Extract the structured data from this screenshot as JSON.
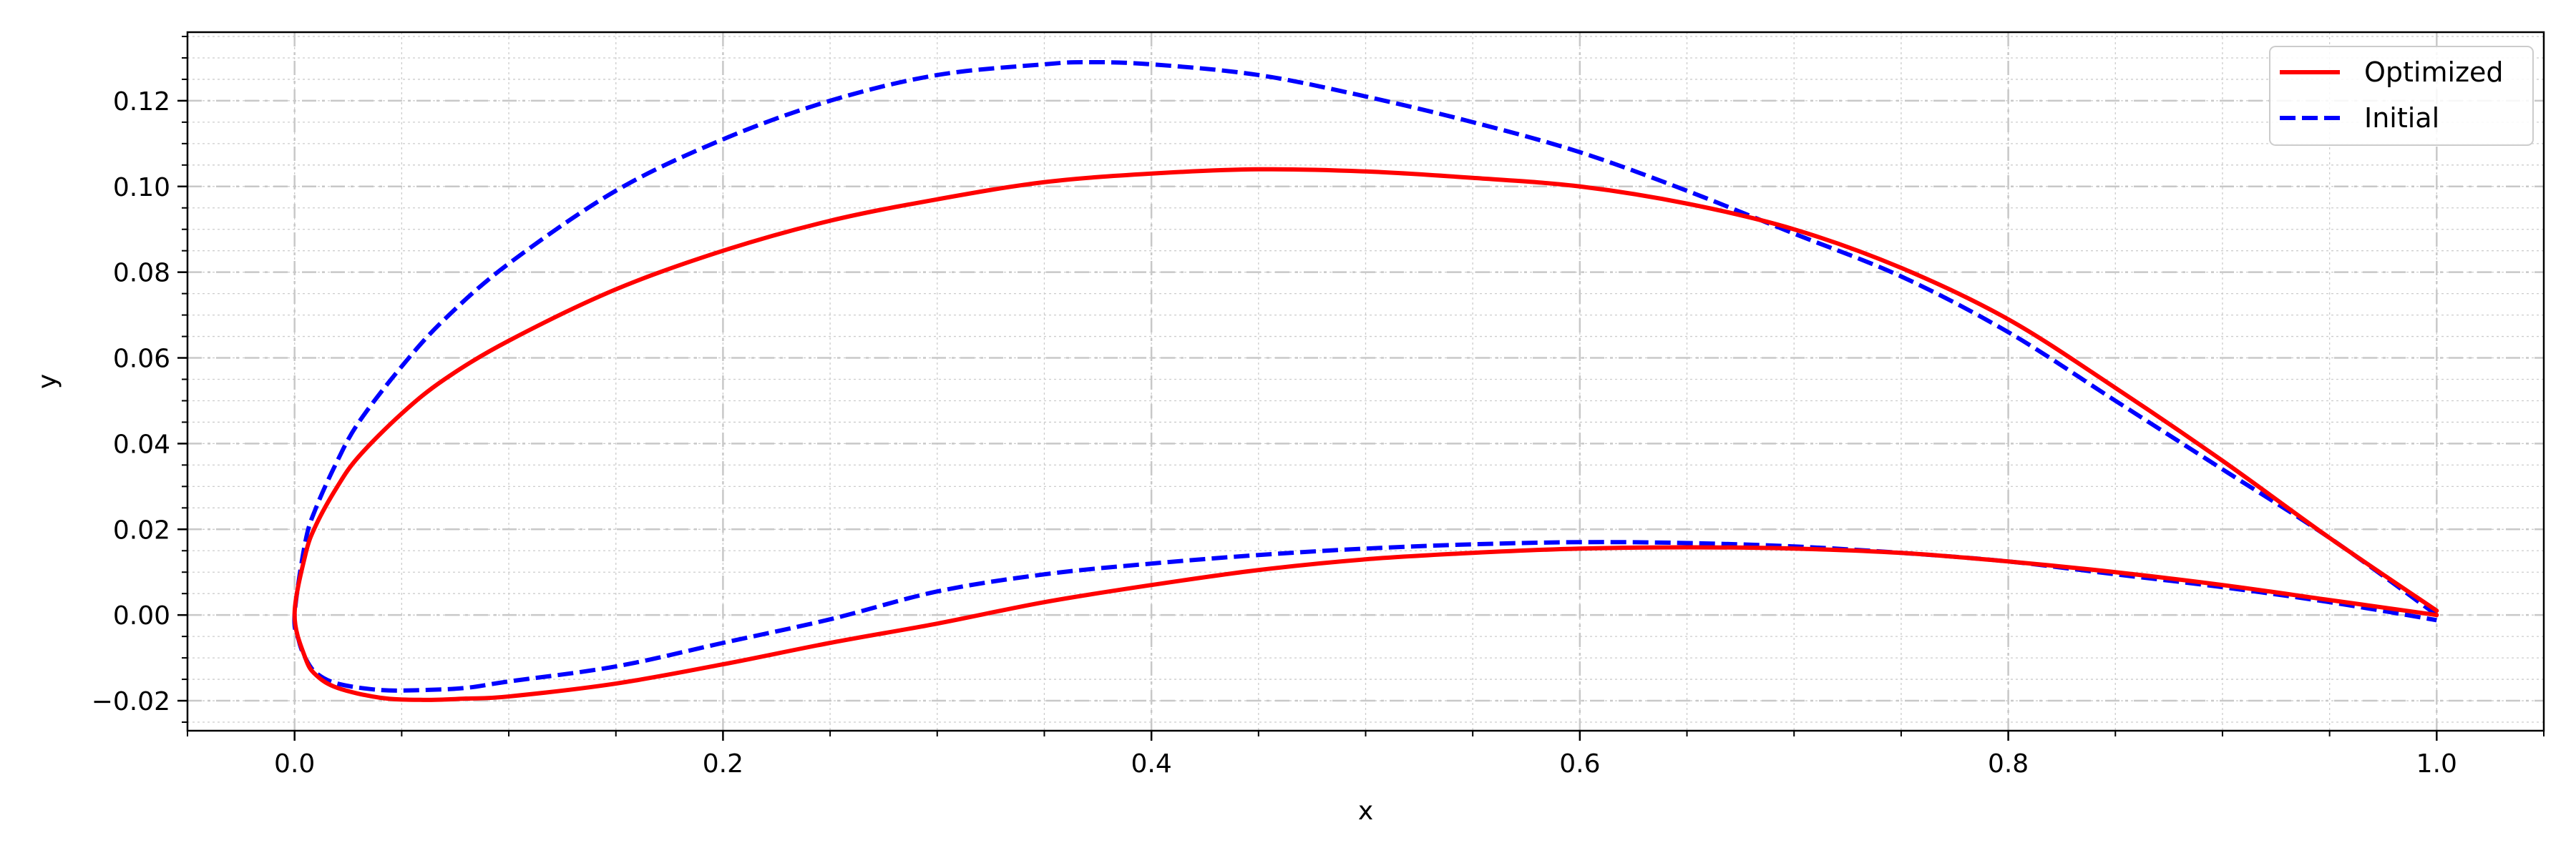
{
  "chart_data": {
    "type": "line",
    "title": "",
    "xlabel": "x",
    "ylabel": "y",
    "xlim": [
      -0.05,
      1.05
    ],
    "ylim": [
      -0.027,
      0.136
    ],
    "x_ticks": [
      0.0,
      0.2,
      0.4,
      0.6,
      0.8,
      1.0
    ],
    "x_tick_labels": [
      "0.0",
      "0.2",
      "0.4",
      "0.6",
      "0.8",
      "1.0"
    ],
    "y_ticks": [
      -0.02,
      0.0,
      0.02,
      0.04,
      0.06,
      0.08,
      0.1,
      0.12
    ],
    "y_tick_labels": [
      "−0.02",
      "0.00",
      "0.02",
      "0.04",
      "0.06",
      "0.08",
      "0.10",
      "0.12"
    ],
    "grid": true,
    "minor_grid": true,
    "legend_position": "top-right",
    "series": [
      {
        "name": "Optimized",
        "color": "#ff0000",
        "line_style": "solid",
        "x": [
          1.0,
          0.95,
          0.9,
          0.85,
          0.8,
          0.75,
          0.7,
          0.65,
          0.6,
          0.55,
          0.5,
          0.45,
          0.4,
          0.35,
          0.3,
          0.25,
          0.2,
          0.15,
          0.1,
          0.07,
          0.05,
          0.03,
          0.02,
          0.01,
          0.005,
          0.0,
          0.005,
          0.01,
          0.02,
          0.04,
          0.06,
          0.08,
          0.1,
          0.15,
          0.2,
          0.25,
          0.3,
          0.35,
          0.4,
          0.45,
          0.5,
          0.55,
          0.6,
          0.65,
          0.7,
          0.75,
          0.8,
          0.85,
          0.9,
          0.95,
          1.0
        ],
        "y": [
          0.001,
          0.018,
          0.036,
          0.053,
          0.069,
          0.081,
          0.09,
          0.096,
          0.1,
          0.102,
          0.1035,
          0.104,
          0.103,
          0.101,
          0.097,
          0.092,
          0.085,
          0.076,
          0.064,
          0.055,
          0.047,
          0.037,
          0.03,
          0.021,
          0.014,
          0.0,
          -0.01,
          -0.014,
          -0.017,
          -0.0193,
          -0.0198,
          -0.0195,
          -0.019,
          -0.016,
          -0.0115,
          -0.0065,
          -0.002,
          0.003,
          0.007,
          0.0105,
          0.013,
          0.0145,
          0.0155,
          0.0158,
          0.0155,
          0.0145,
          0.0125,
          0.01,
          0.007,
          0.0035,
          0.0
        ]
      },
      {
        "name": "Initial",
        "color": "#0000ff",
        "line_style": "dashed",
        "x": [
          1.0,
          0.95,
          0.9,
          0.85,
          0.8,
          0.75,
          0.7,
          0.65,
          0.6,
          0.55,
          0.5,
          0.45,
          0.4,
          0.37,
          0.35,
          0.3,
          0.25,
          0.2,
          0.15,
          0.1,
          0.07,
          0.05,
          0.03,
          0.02,
          0.01,
          0.005,
          0.0,
          0.002,
          0.005,
          0.01,
          0.02,
          0.04,
          0.06,
          0.08,
          0.1,
          0.15,
          0.2,
          0.25,
          0.3,
          0.35,
          0.4,
          0.45,
          0.5,
          0.55,
          0.6,
          0.65,
          0.7,
          0.75,
          0.8,
          0.85,
          0.9,
          0.95,
          1.0
        ],
        "y": [
          0.0,
          0.018,
          0.034,
          0.05,
          0.066,
          0.079,
          0.089,
          0.099,
          0.108,
          0.115,
          0.121,
          0.126,
          0.1285,
          0.129,
          0.1285,
          0.126,
          0.12,
          0.111,
          0.099,
          0.082,
          0.069,
          0.058,
          0.045,
          0.036,
          0.025,
          0.017,
          0.0,
          -0.006,
          -0.01,
          -0.0135,
          -0.016,
          -0.0175,
          -0.0175,
          -0.017,
          -0.0155,
          -0.012,
          -0.0065,
          -0.001,
          0.0055,
          0.0095,
          0.012,
          0.014,
          0.0155,
          0.0165,
          0.017,
          0.0168,
          0.016,
          0.0145,
          0.0125,
          0.0095,
          0.0065,
          0.003,
          -0.0012
        ]
      }
    ]
  }
}
